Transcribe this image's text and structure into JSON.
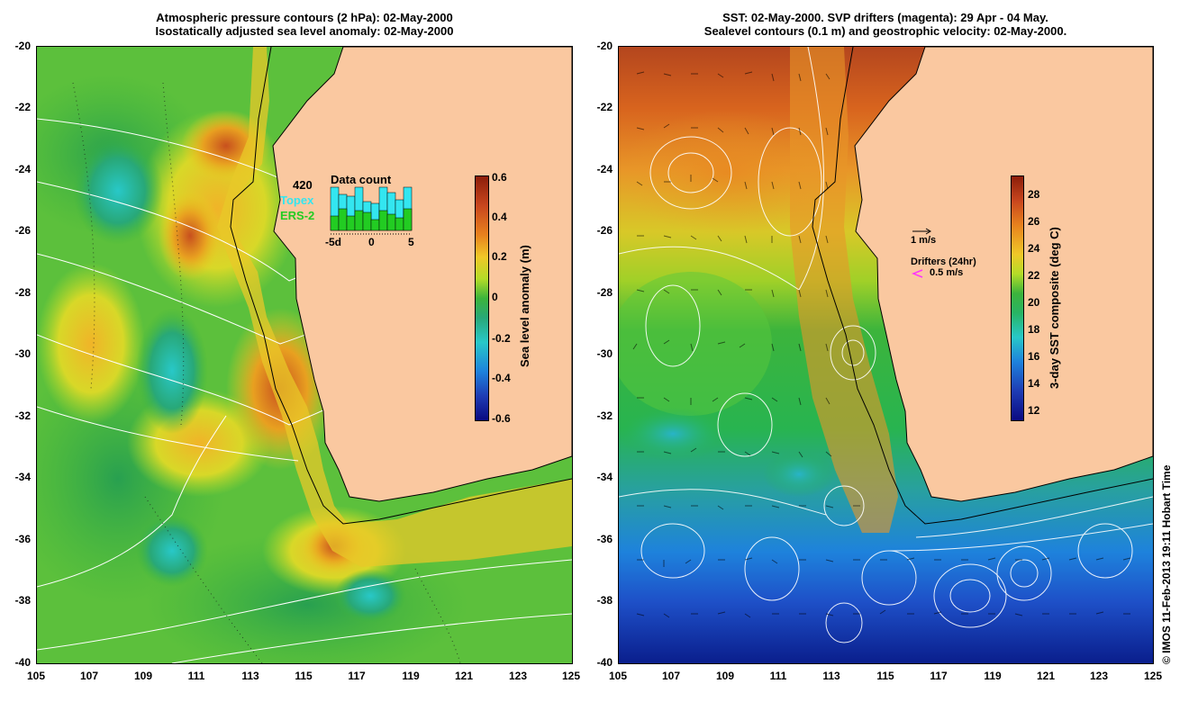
{
  "left": {
    "title_line1": "Atmospheric pressure contours (2 hPa): 02-May-2000",
    "title_line2": "Isostatically adjusted sea level anomaly: 02-May-2000",
    "colorbar_label": "Sea level anomaly (m)",
    "colorbar_ticks": [
      "0.6",
      "0.4",
      "0.2",
      "0",
      "-0.2",
      "-0.4",
      "-0.6"
    ],
    "inset": {
      "count": "420",
      "heading": "Data count",
      "topex_label": "Topex",
      "ers_label": "ERS-2",
      "axis_ticks": [
        "-5d",
        "0",
        "5"
      ],
      "topex_color": "#33e6f0",
      "ers_color": "#22cc22"
    }
  },
  "right": {
    "title_line1": "SST: 02-May-2000. SVP drifters (magenta): 29 Apr - 04 May.",
    "title_line2": "Sealevel contours (0.1 m) and geostrophic velocity: 02-May-2000.",
    "colorbar_label": "3-day SST composite (deg C)",
    "colorbar_ticks": [
      "28",
      "26",
      "24",
      "22",
      "20",
      "18",
      "16",
      "14",
      "12"
    ],
    "velocity_scale_label": "1 m/s",
    "drifters_label": "Drifters (24hr)",
    "drifter_scale_label": "0.5 m/s",
    "drifter_color": "#ff33ff"
  },
  "axes": {
    "lat_ticks": [
      "-20",
      "-22",
      "-24",
      "-26",
      "-28",
      "-30",
      "-32",
      "-34",
      "-36",
      "-38",
      "-40"
    ],
    "lon_ticks": [
      "105",
      "107",
      "109",
      "111",
      "113",
      "115",
      "117",
      "119",
      "121",
      "123",
      "125"
    ]
  },
  "credit": "© IMOS 11-Feb-2013 19:11 Hobart Time",
  "colors": {
    "land": "#fac8a0",
    "ocean_mid": "#3cb43c",
    "warm": "#e8a020"
  }
}
